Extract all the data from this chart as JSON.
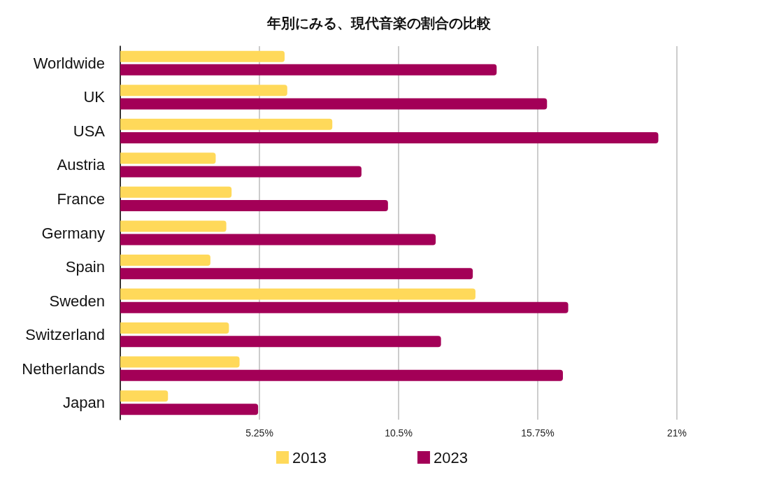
{
  "chart_data": {
    "type": "bar",
    "orientation": "horizontal",
    "title": "年別にみる、現代音楽の割合の比較",
    "categories": [
      "Worldwide",
      "UK",
      "USA",
      "Austria",
      "France",
      "Germany",
      "Spain",
      "Sweden",
      "Switzerland",
      "Netherlands",
      "Japan"
    ],
    "series": [
      {
        "name": "2013",
        "color": "#ffd95a",
        "values": [
          6.2,
          6.3,
          8.0,
          3.6,
          4.2,
          4.0,
          3.4,
          13.4,
          4.1,
          4.5,
          1.8
        ]
      },
      {
        "name": "2023",
        "color": "#a30057",
        "values": [
          14.2,
          16.1,
          20.3,
          9.1,
          10.1,
          11.9,
          13.3,
          16.9,
          12.1,
          16.7,
          5.2
        ]
      }
    ],
    "xlim": [
      0,
      21
    ],
    "xticks": [
      {
        "value": 0,
        "label": null
      },
      {
        "value": 5.25,
        "label": "5.25%"
      },
      {
        "value": 10.5,
        "label": "10.5%"
      },
      {
        "value": 15.75,
        "label": "15.75%"
      },
      {
        "value": 21,
        "label": "21%"
      }
    ],
    "grid": "x",
    "legend": "bottom",
    "marker": "square"
  }
}
